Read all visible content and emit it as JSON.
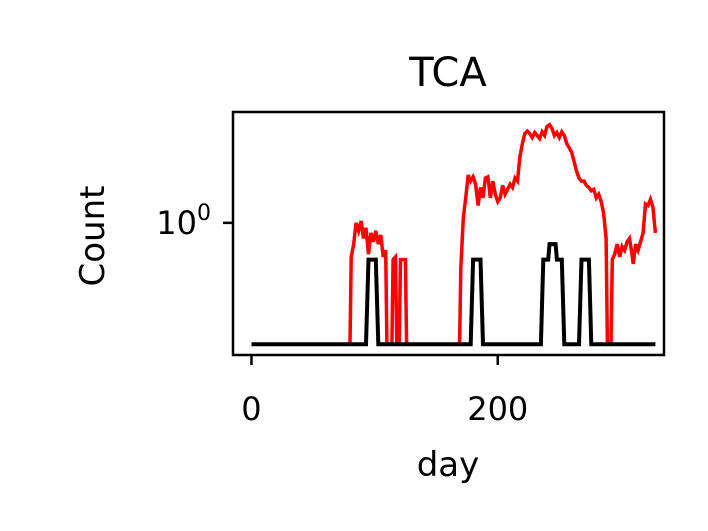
{
  "chart_data": {
    "type": "line",
    "title": "TCA",
    "xlabel": "day",
    "ylabel": "Count",
    "yscale": "log",
    "grid": false,
    "legend": "none",
    "x_ticks": [
      {
        "value": 0,
        "label": "0"
      },
      {
        "value": 200,
        "label": "200"
      }
    ],
    "y_ticks": [
      {
        "value": 1,
        "base": "10",
        "exponent": "0"
      }
    ],
    "xlim": [
      -15,
      335
    ],
    "ylim": [
      0.25,
      3.2
    ],
    "series": [
      {
        "color": "#ff0000",
        "points": [
          [
            0,
            0.28
          ],
          [
            80,
            0.28
          ],
          [
            81,
            0.7
          ],
          [
            83,
            0.8
          ],
          [
            85,
            1.0
          ],
          [
            87,
            0.92
          ],
          [
            89,
            1.02
          ],
          [
            91,
            0.85
          ],
          [
            93,
            0.95
          ],
          [
            95,
            0.72
          ],
          [
            97,
            0.9
          ],
          [
            99,
            0.82
          ],
          [
            101,
            0.92
          ],
          [
            103,
            0.8
          ],
          [
            105,
            0.88
          ],
          [
            107,
            0.7
          ],
          [
            109,
            0.75
          ],
          [
            110,
            0.28
          ],
          [
            114,
            0.28
          ],
          [
            115,
            0.68
          ],
          [
            117,
            0.7
          ],
          [
            118,
            0.28
          ],
          [
            120,
            0.28
          ],
          [
            121,
            0.68
          ],
          [
            125,
            0.68
          ],
          [
            126,
            0.28
          ],
          [
            169,
            0.28
          ],
          [
            170,
            0.62
          ],
          [
            172,
            1.05
          ],
          [
            174,
            1.3
          ],
          [
            176,
            1.65
          ],
          [
            178,
            1.55
          ],
          [
            180,
            1.62
          ],
          [
            182,
            1.5
          ],
          [
            184,
            1.2
          ],
          [
            186,
            1.45
          ],
          [
            188,
            1.3
          ],
          [
            190,
            1.6
          ],
          [
            192,
            1.62
          ],
          [
            194,
            1.3
          ],
          [
            196,
            1.55
          ],
          [
            198,
            1.35
          ],
          [
            200,
            1.25
          ],
          [
            202,
            1.3
          ],
          [
            204,
            1.48
          ],
          [
            206,
            1.35
          ],
          [
            208,
            1.42
          ],
          [
            210,
            1.5
          ],
          [
            212,
            1.45
          ],
          [
            214,
            1.6
          ],
          [
            216,
            1.55
          ],
          [
            218,
            2.0
          ],
          [
            220,
            2.3
          ],
          [
            222,
            2.55
          ],
          [
            224,
            2.62
          ],
          [
            226,
            2.55
          ],
          [
            228,
            2.45
          ],
          [
            230,
            2.58
          ],
          [
            232,
            2.5
          ],
          [
            234,
            2.42
          ],
          [
            236,
            2.6
          ],
          [
            238,
            2.5
          ],
          [
            240,
            2.75
          ],
          [
            242,
            2.8
          ],
          [
            244,
            2.7
          ],
          [
            246,
            2.5
          ],
          [
            248,
            2.58
          ],
          [
            250,
            2.45
          ],
          [
            252,
            2.6
          ],
          [
            254,
            2.5
          ],
          [
            256,
            2.3
          ],
          [
            258,
            2.2
          ],
          [
            260,
            2.1
          ],
          [
            262,
            1.9
          ],
          [
            264,
            1.72
          ],
          [
            266,
            1.6
          ],
          [
            268,
            1.55
          ],
          [
            270,
            1.55
          ],
          [
            272,
            1.48
          ],
          [
            274,
            1.45
          ],
          [
            276,
            1.4
          ],
          [
            278,
            1.42
          ],
          [
            280,
            1.3
          ],
          [
            282,
            1.35
          ],
          [
            284,
            1.25
          ],
          [
            286,
            1.1
          ],
          [
            288,
            0.85
          ],
          [
            289,
            0.28
          ],
          [
            292,
            0.28
          ],
          [
            293,
            0.68
          ],
          [
            295,
            0.72
          ],
          [
            297,
            0.8
          ],
          [
            299,
            0.7
          ],
          [
            301,
            0.78
          ],
          [
            303,
            0.75
          ],
          [
            305,
            0.82
          ],
          [
            307,
            0.85
          ],
          [
            309,
            0.72
          ],
          [
            310,
            0.65
          ],
          [
            312,
            0.8
          ],
          [
            314,
            0.75
          ],
          [
            316,
            0.82
          ],
          [
            318,
            0.9
          ],
          [
            320,
            1.22
          ],
          [
            322,
            1.2
          ],
          [
            324,
            1.28
          ],
          [
            326,
            1.18
          ],
          [
            328,
            0.9
          ]
        ]
      },
      {
        "color": "#000000",
        "points": [
          [
            0,
            0.28
          ],
          [
            93,
            0.28
          ],
          [
            95,
            0.68
          ],
          [
            101,
            0.68
          ],
          [
            103,
            0.28
          ],
          [
            178,
            0.28
          ],
          [
            180,
            0.68
          ],
          [
            186,
            0.68
          ],
          [
            188,
            0.28
          ],
          [
            235,
            0.28
          ],
          [
            237,
            0.68
          ],
          [
            241,
            0.68
          ],
          [
            242,
            0.8
          ],
          [
            247,
            0.8
          ],
          [
            248,
            0.68
          ],
          [
            252,
            0.68
          ],
          [
            254,
            0.28
          ],
          [
            266,
            0.28
          ],
          [
            268,
            0.68
          ],
          [
            274,
            0.68
          ],
          [
            276,
            0.28
          ],
          [
            328,
            0.28
          ]
        ]
      }
    ]
  }
}
